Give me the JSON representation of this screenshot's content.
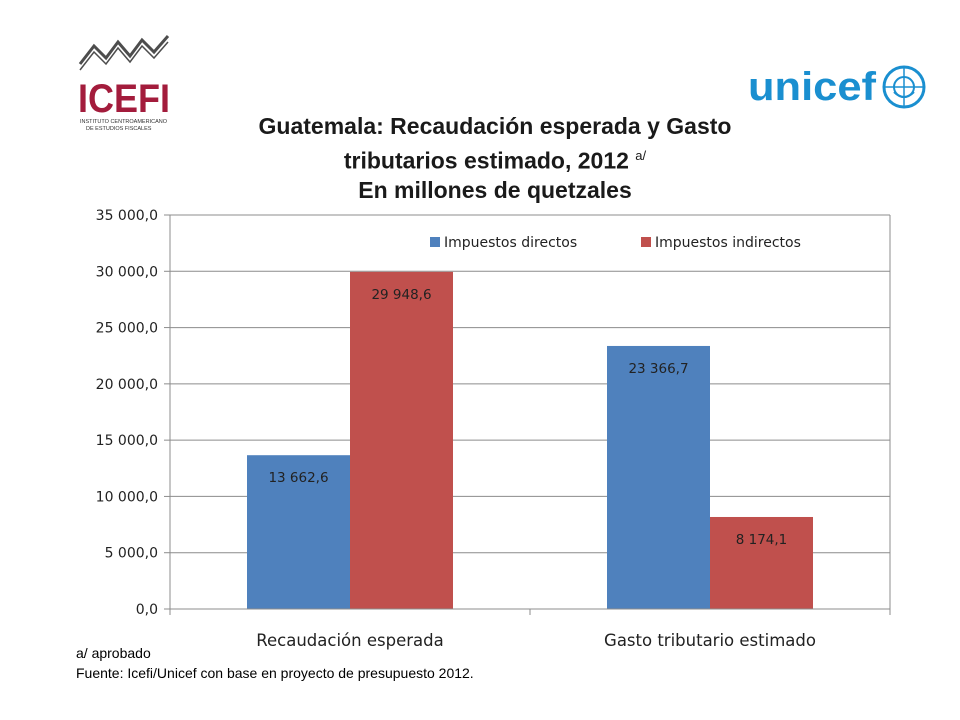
{
  "logos": {
    "left_text": "ICEFI",
    "left_subtext": "INSTITUTO CENTROAMERICANO DE ESTUDIOS FISCALES",
    "right_text": "unicef",
    "right_icon": "un-emblem-icon"
  },
  "title": {
    "line1": "Guatemala: Recaudación esperada y Gasto",
    "line2_main": "tributarios estimado, 2012",
    "line2_sup": "a/",
    "line3": "En millones de quetzales"
  },
  "notes": {
    "footnote": "a/ aprobado",
    "source": "Fuente: Icefi/Unicef con base en proyecto de presupuesto 2012."
  },
  "chart_data": {
    "type": "bar",
    "categories": [
      "Recaudación esperada",
      "Gasto tributario estimado"
    ],
    "series": [
      {
        "name": "Impuestos directos",
        "color": "#4F81BD",
        "values": [
          13662.6,
          23366.7
        ],
        "labels": [
          "13 662,6",
          "23 366,7"
        ]
      },
      {
        "name": "Impuestos indirectos",
        "color": "#C0504D",
        "values": [
          29948.6,
          8174.1
        ],
        "labels": [
          "29 948,6",
          "8 174,1"
        ]
      }
    ],
    "ylim": [
      0,
      35000
    ],
    "yticks": [
      0,
      5000,
      10000,
      15000,
      20000,
      25000,
      30000,
      35000
    ],
    "ytick_labels": [
      "0,0",
      "5 000,0",
      "10 000,0",
      "15 000,0",
      "20 000,0",
      "25 000,0",
      "30 000,0",
      "35 000,0"
    ],
    "grid": true,
    "legend": "top-right"
  }
}
